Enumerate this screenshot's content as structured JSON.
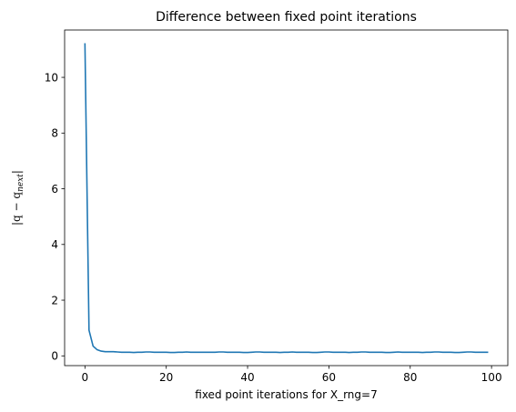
{
  "chart_data": {
    "type": "line",
    "title": "Difference between fixed point iterations",
    "xlabel": "fixed point iterations for X_rng=7",
    "ylabel": {
      "pre": "|q − q",
      "sub": "next",
      "post": "|"
    },
    "xlim": [
      -5,
      104
    ],
    "ylim": [
      -0.35,
      11.7
    ],
    "xticks": [
      0,
      20,
      40,
      60,
      80,
      100
    ],
    "yticks": [
      0,
      2,
      4,
      6,
      8,
      10
    ],
    "grid": false,
    "legend": "none",
    "series": [
      {
        "color": "#1f77b4",
        "x": [
          0,
          1,
          2,
          3,
          4,
          5,
          6,
          7,
          8,
          9,
          10,
          11,
          12,
          13,
          14,
          15,
          16,
          17,
          18,
          19,
          20,
          21,
          22,
          23,
          24,
          25,
          26,
          27,
          28,
          29,
          30,
          31,
          32,
          33,
          34,
          35,
          36,
          37,
          38,
          39,
          40,
          41,
          42,
          43,
          44,
          45,
          46,
          47,
          48,
          49,
          50,
          51,
          52,
          53,
          54,
          55,
          56,
          57,
          58,
          59,
          60,
          61,
          62,
          63,
          64,
          65,
          66,
          67,
          68,
          69,
          70,
          71,
          72,
          73,
          74,
          75,
          76,
          77,
          78,
          79,
          80,
          81,
          82,
          83,
          84,
          85,
          86,
          87,
          88,
          89,
          90,
          91,
          92,
          93,
          94,
          95,
          96,
          97,
          98,
          99
        ],
        "y": [
          11.2,
          0.92,
          0.35,
          0.22,
          0.17,
          0.15,
          0.15,
          0.15,
          0.14,
          0.13,
          0.13,
          0.13,
          0.12,
          0.13,
          0.13,
          0.14,
          0.14,
          0.13,
          0.13,
          0.13,
          0.13,
          0.12,
          0.12,
          0.13,
          0.13,
          0.14,
          0.13,
          0.13,
          0.13,
          0.13,
          0.13,
          0.13,
          0.13,
          0.14,
          0.14,
          0.13,
          0.13,
          0.13,
          0.13,
          0.12,
          0.12,
          0.13,
          0.14,
          0.14,
          0.13,
          0.13,
          0.13,
          0.13,
          0.12,
          0.13,
          0.13,
          0.14,
          0.13,
          0.13,
          0.13,
          0.13,
          0.12,
          0.12,
          0.13,
          0.14,
          0.14,
          0.13,
          0.13,
          0.13,
          0.13,
          0.12,
          0.13,
          0.13,
          0.14,
          0.14,
          0.13,
          0.13,
          0.13,
          0.13,
          0.12,
          0.12,
          0.13,
          0.14,
          0.13,
          0.13,
          0.13,
          0.13,
          0.13,
          0.12,
          0.13,
          0.13,
          0.14,
          0.14,
          0.13,
          0.13,
          0.13,
          0.12,
          0.12,
          0.13,
          0.14,
          0.14,
          0.13,
          0.13,
          0.13,
          0.13
        ]
      }
    ]
  }
}
